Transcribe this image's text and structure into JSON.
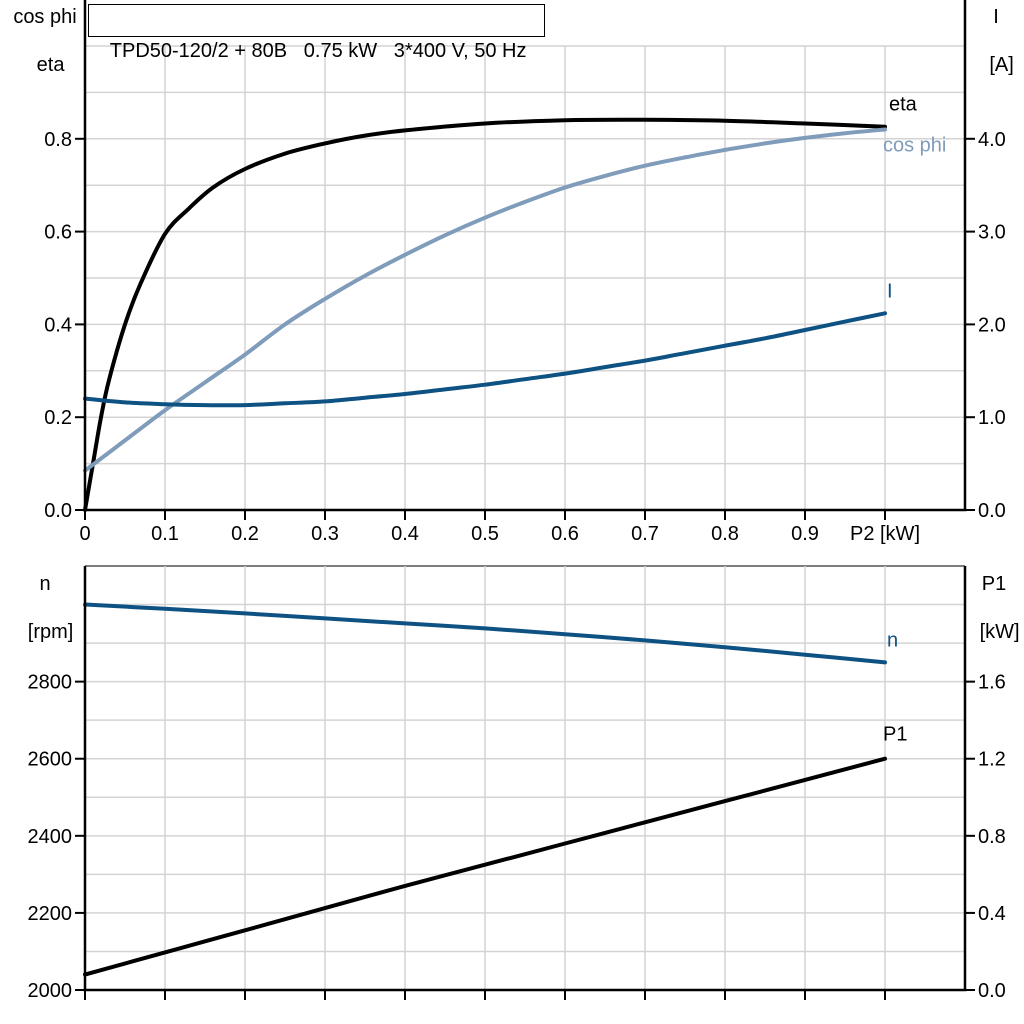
{
  "title": "TPD50-120/2 + 80B   0.75 kW   3*400 V, 50 Hz",
  "colors": {
    "curve_black": "#000000",
    "curve_light_blue": "#7f9cba",
    "curve_dark_blue": "#0e5183",
    "grid": "#d4d4d4",
    "grid_dark": "#7d7d7d",
    "axis": "#000000"
  },
  "axis_corner_labels": {
    "top_left_line1": "cos phi",
    "top_left_line2": "eta",
    "top_right_line1": "I",
    "top_right_line2": "[A]",
    "bottom_left_line1": "n",
    "bottom_left_line2": "[rpm]",
    "bottom_right_line1": "P1",
    "bottom_right_line2": "[kW]"
  },
  "chart_data": [
    {
      "type": "line",
      "title": "TPD50-120/2 + 80B   0.75 kW   3*400 V, 50 Hz",
      "xlabel": "P2 [kW]",
      "xlim": [
        0,
        1.1
      ],
      "x_grid_step": 0.1,
      "x_ticks": [
        0,
        0.1,
        0.2,
        0.3,
        0.4,
        0.5,
        0.6,
        0.7,
        0.8,
        0.9,
        1.0
      ],
      "x_tick_labels": [
        "0",
        "0.1",
        "0.2",
        "0.3",
        "0.4",
        "0.5",
        "0.6",
        "0.7",
        "0.8",
        "0.9"
      ],
      "grid": true,
      "left": {
        "title": "cos phi / eta",
        "lim": [
          0,
          1.0
        ],
        "grid_step": 0.1,
        "ticks": [
          "0.0",
          "0.2",
          "0.4",
          "0.6",
          "0.8"
        ]
      },
      "right": {
        "title": "I [A]",
        "lim": [
          0,
          5.0
        ],
        "ticks": [
          "0.0",
          "1.0",
          "2.0",
          "3.0",
          "4.0"
        ]
      },
      "series": [
        {
          "name": "eta",
          "axis": "left",
          "color_key": "curve_black",
          "x": [
            0,
            0.01,
            0.02,
            0.03,
            0.05,
            0.07,
            0.1,
            0.13,
            0.16,
            0.2,
            0.25,
            0.3,
            0.35,
            0.4,
            0.5,
            0.6,
            0.7,
            0.8,
            0.9,
            1.0
          ],
          "values": [
            0,
            0.1,
            0.2,
            0.28,
            0.4,
            0.49,
            0.595,
            0.65,
            0.695,
            0.735,
            0.768,
            0.79,
            0.807,
            0.818,
            0.833,
            0.84,
            0.841,
            0.839,
            0.833,
            0.826
          ]
        },
        {
          "name": "cos phi",
          "axis": "left",
          "color_key": "curve_light_blue",
          "x": [
            0,
            0.05,
            0.1,
            0.15,
            0.2,
            0.25,
            0.3,
            0.35,
            0.4,
            0.45,
            0.5,
            0.55,
            0.6,
            0.65,
            0.7,
            0.75,
            0.8,
            0.85,
            0.9,
            0.95,
            1.0
          ],
          "values": [
            0.085,
            0.15,
            0.215,
            0.275,
            0.335,
            0.4,
            0.455,
            0.505,
            0.55,
            0.592,
            0.63,
            0.664,
            0.695,
            0.72,
            0.742,
            0.76,
            0.776,
            0.79,
            0.802,
            0.812,
            0.82
          ]
        },
        {
          "name": "I",
          "axis": "right",
          "color_key": "curve_dark_blue",
          "x": [
            0,
            0.05,
            0.1,
            0.15,
            0.2,
            0.25,
            0.3,
            0.35,
            0.4,
            0.45,
            0.5,
            0.55,
            0.6,
            0.65,
            0.7,
            0.75,
            0.8,
            0.85,
            0.9,
            0.95,
            1.0
          ],
          "values": [
            1.2,
            1.16,
            1.14,
            1.13,
            1.13,
            1.15,
            1.17,
            1.21,
            1.25,
            1.3,
            1.35,
            1.41,
            1.47,
            1.54,
            1.61,
            1.69,
            1.77,
            1.85,
            1.94,
            2.03,
            2.12
          ]
        }
      ]
    },
    {
      "type": "line",
      "title": "",
      "xlabel": "",
      "xlim": [
        0,
        1.1
      ],
      "x_grid_step": 0.1,
      "x_ticks": [
        0,
        0.1,
        0.2,
        0.3,
        0.4,
        0.5,
        0.6,
        0.7,
        0.8,
        0.9,
        1.0
      ],
      "x_tick_labels": [],
      "grid": true,
      "left": {
        "title": "n [rpm]",
        "lim": [
          2000,
          3100
        ],
        "grid_step": 100,
        "ticks": [
          "2000",
          "2200",
          "2400",
          "2600",
          "2800"
        ]
      },
      "right": {
        "title": "P1 [kW]",
        "lim": [
          0,
          2.2
        ],
        "ticks": [
          "0.0",
          "0.4",
          "0.8",
          "1.2",
          "1.6"
        ]
      },
      "series": [
        {
          "name": "n",
          "axis": "left",
          "color_key": "curve_dark_blue",
          "x": [
            0,
            0.1,
            0.2,
            0.3,
            0.4,
            0.5,
            0.6,
            0.7,
            0.8,
            0.9,
            1.0
          ],
          "values": [
            3000,
            2989,
            2977,
            2964,
            2951,
            2938,
            2923,
            2907,
            2889,
            2870,
            2850
          ]
        },
        {
          "name": "P1",
          "axis": "right",
          "color_key": "curve_black",
          "x": [
            0,
            0.1,
            0.2,
            0.3,
            0.4,
            0.5,
            0.6,
            0.7,
            0.8,
            0.9,
            1.0
          ],
          "values": [
            0.08,
            0.195,
            0.31,
            0.425,
            0.54,
            0.65,
            0.76,
            0.87,
            0.98,
            1.09,
            1.2
          ]
        }
      ]
    }
  ]
}
